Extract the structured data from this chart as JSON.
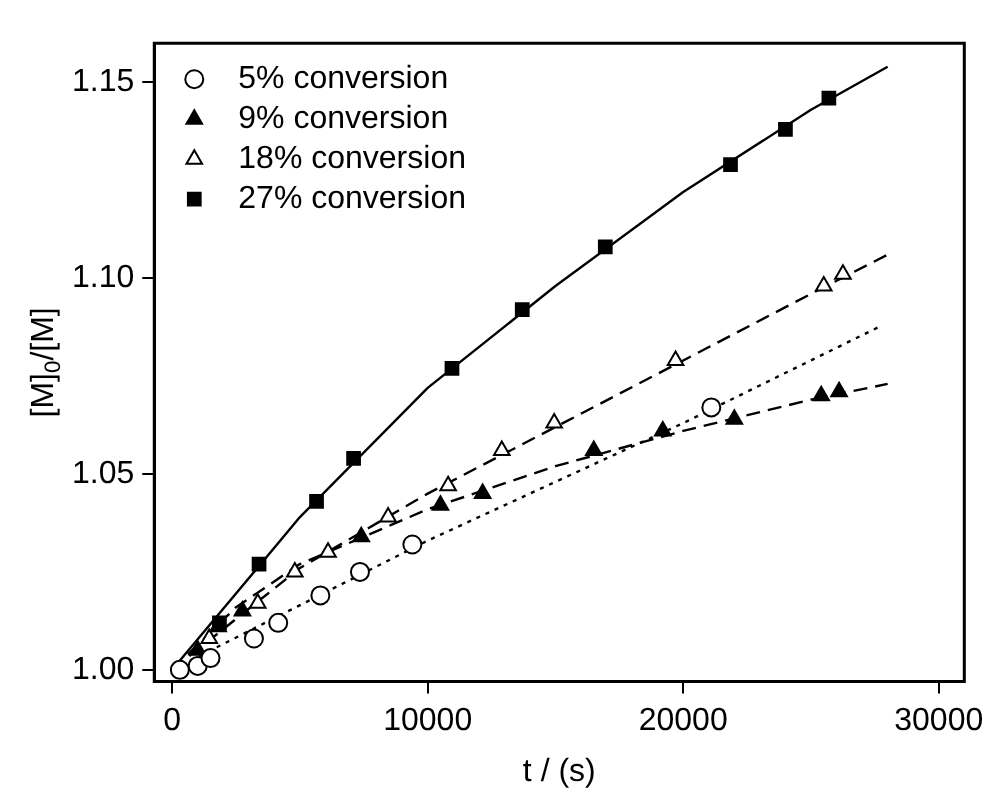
{
  "chart_data": {
    "type": "scatter",
    "xlabel": "t / (s)",
    "ylabel": "[M]$_{0}$/[M]",
    "xlim": [
      -700,
      31000
    ],
    "ylim": [
      0.997,
      1.16
    ],
    "xticks": [
      0,
      10000,
      20000,
      30000
    ],
    "yticks": [
      {
        "value": 1.0,
        "label": "1.00"
      },
      {
        "value": 1.05,
        "label": "1.05"
      },
      {
        "value": 1.1,
        "label": "1.10"
      },
      {
        "value": 1.15,
        "label": "1.15"
      }
    ],
    "grid": false,
    "legend": "top left",
    "series": [
      {
        "name": "5% conversion",
        "color": "#ffffff",
        "marker": "circle",
        "x": [
          300,
          1000,
          1500,
          3200,
          4150,
          5800,
          7350,
          9400,
          21100
        ],
        "values": [
          1.0,
          1.001,
          1.003,
          1.008,
          1.012,
          1.019,
          1.025,
          1.032,
          1.067
        ]
      },
      {
        "name": "9% conversion",
        "color": "#000000",
        "marker": "triangle",
        "x": [
          1000,
          1800,
          2750,
          7400,
          10500,
          12150,
          16500,
          19200,
          22000,
          25400,
          26100
        ],
        "values": [
          1.005,
          1.011,
          1.015,
          1.034,
          1.042,
          1.045,
          1.056,
          1.061,
          1.064,
          1.07,
          1.071
        ]
      },
      {
        "name": "18% conversion",
        "color": "#ffffff",
        "marker": "triangle",
        "x": [
          1450,
          3350,
          4800,
          6100,
          8450,
          10800,
          12900,
          14950,
          19700,
          25500,
          26250
        ],
        "values": [
          1.008,
          1.017,
          1.025,
          1.03,
          1.039,
          1.047,
          1.056,
          1.063,
          1.079,
          1.098,
          1.101
        ]
      },
      {
        "name": "27% conversion",
        "color": "#000000",
        "marker": "square",
        "x": [
          1850,
          3400,
          5650,
          7100,
          10950,
          13700,
          16950,
          21850,
          24000,
          25700
        ],
        "values": [
          1.012,
          1.027,
          1.043,
          1.054,
          1.077,
          1.092,
          1.108,
          1.129,
          1.138,
          1.146
        ]
      },
      {
        "type": "line",
        "color": "#000000",
        "line_style": "solid",
        "x": [
          0,
          5000,
          10000,
          15000,
          20000,
          25000,
          28000
        ],
        "values": [
          1.0,
          1.039,
          1.072,
          1.098,
          1.122,
          1.143,
          1.154
        ]
      },
      {
        "type": "line",
        "color": "#000000",
        "line_style": "dashed",
        "x": [
          0,
          5000,
          10000,
          15000,
          20000,
          25000,
          28000
        ],
        "values": [
          1.0,
          1.026,
          1.045,
          1.062,
          1.079,
          1.096,
          1.106
        ]
      },
      {
        "type": "line",
        "color": "#000000",
        "line_style": "dashed",
        "x": [
          0,
          2500,
          5000,
          10000,
          15000,
          20000,
          25000,
          28000
        ],
        "values": [
          1.0,
          1.016,
          1.027,
          1.041,
          1.052,
          1.061,
          1.069,
          1.073
        ]
      },
      {
        "type": "line",
        "color": "#000000",
        "line_style": "dotted",
        "x": [
          0,
          10000,
          20000,
          27800
        ],
        "values": [
          1.0,
          1.033,
          1.063,
          1.088
        ]
      }
    ]
  }
}
